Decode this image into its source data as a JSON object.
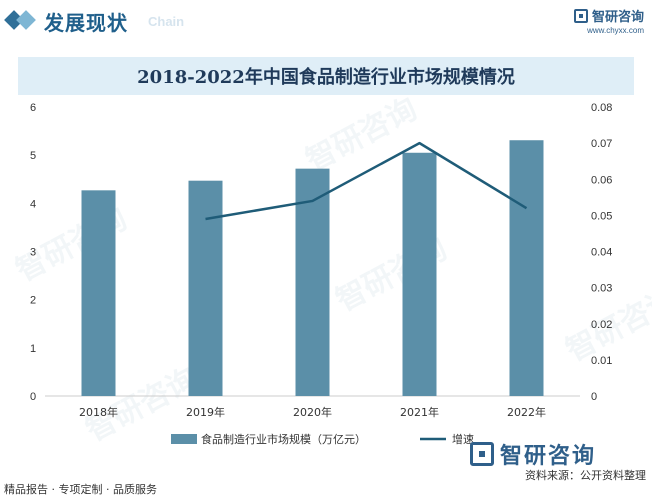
{
  "header": {
    "section_title": "发展现状",
    "section_en": "Chain",
    "brand_name": "智研咨询",
    "brand_url": "www.chyxx.com"
  },
  "colors": {
    "bar": "#5b8fa8",
    "line": "#1f5c78",
    "title_band": "#dfeef7",
    "accent": "#2f5f8a"
  },
  "chart_data": {
    "type": "bar",
    "title": "2018-2022年中国食品制造行业市场规模情况",
    "categories": [
      "2018年",
      "2019年",
      "2020年",
      "2021年",
      "2022年"
    ],
    "series": [
      {
        "name": "食品制造行业市场规模（万亿元）",
        "type": "bar",
        "axis": "left",
        "values": [
          4.27,
          4.47,
          4.72,
          5.05,
          5.31
        ]
      },
      {
        "name": "增速",
        "type": "line",
        "axis": "right",
        "values": [
          null,
          0.049,
          0.054,
          0.07,
          0.052
        ]
      }
    ],
    "y_left": {
      "min": 0,
      "max": 6,
      "ticks": [
        "0",
        "1",
        "2",
        "3",
        "4",
        "5",
        "6"
      ]
    },
    "y_right": {
      "min": 0,
      "max": 0.08,
      "ticks": [
        "0",
        "0.01",
        "0.02",
        "0.03",
        "0.04",
        "0.05",
        "0.06",
        "0.07",
        "0.08"
      ]
    },
    "grid": false,
    "legend": "bottom"
  },
  "watermark_text": "智研咨询",
  "footer": {
    "left": "精品报告 · 专项定制 · 品质服务",
    "brand_name": "智研咨询",
    "source": "资料来源：公开资料整理"
  }
}
